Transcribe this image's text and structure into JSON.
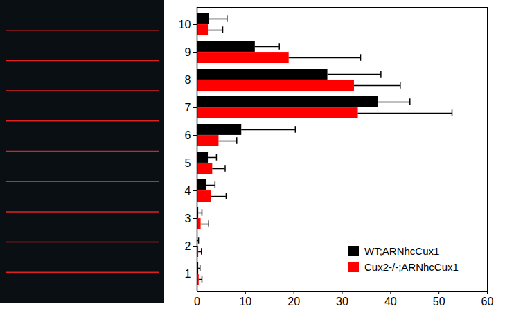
{
  "chart_data": {
    "type": "bar",
    "orientation": "horizontal",
    "categories": [
      "1",
      "2",
      "3",
      "4",
      "5",
      "6",
      "7",
      "8",
      "9",
      "10"
    ],
    "series": [
      {
        "name": "WT;ARNhcCux1",
        "color": "#000000",
        "values": [
          0.3,
          0.1,
          0.3,
          2.0,
          2.3,
          9.2,
          37.5,
          27.0,
          12.0,
          2.5
        ],
        "errors": [
          0.3,
          0.2,
          0.7,
          1.7,
          1.7,
          11.1,
          6.5,
          11.0,
          5.0,
          3.7
        ]
      },
      {
        "name": "Cux2-/-;ARNhcCux1",
        "color": "#ff0000",
        "values": [
          0.4,
          0.3,
          0.8,
          3.0,
          3.2,
          4.5,
          33.3,
          32.5,
          19.0,
          2.3
        ],
        "errors": [
          0.6,
          0.6,
          1.6,
          3.0,
          2.6,
          3.7,
          19.4,
          9.5,
          14.8,
          3.0
        ]
      }
    ],
    "xlim": [
      0,
      60
    ],
    "xticks": [
      0,
      10,
      20,
      30,
      40,
      50,
      60
    ],
    "legend": "lower right",
    "grid": false
  }
}
